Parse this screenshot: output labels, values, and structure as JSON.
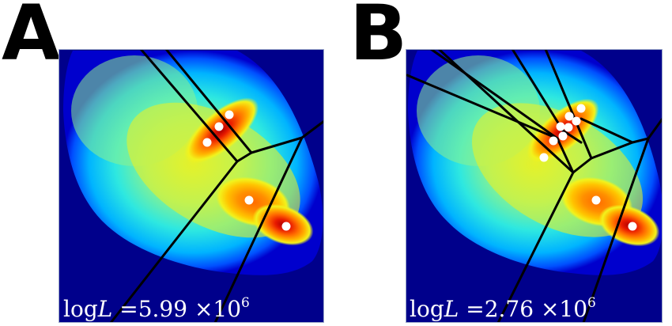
{
  "panels": [
    {
      "letter": "A",
      "log_prefix": "log",
      "log_var": "L",
      "log_eq": " =5.99 ×10",
      "log_exp": "6"
    },
    {
      "letter": "B",
      "log_prefix": "log",
      "log_var": "L",
      "log_eq": " =2.76 ×10",
      "log_exp": "6"
    }
  ],
  "colors": {
    "background": "#00008b",
    "ramp": [
      "#00008b",
      "#0000cd",
      "#0050ff",
      "#00b4ff",
      "#2ee8e0",
      "#6ff5a8",
      "#b6f45a",
      "#f2f21c",
      "#ffb400",
      "#ff6a00",
      "#e81a00",
      "#b00000"
    ],
    "points": "#ffffff",
    "edges": "#000000"
  }
}
